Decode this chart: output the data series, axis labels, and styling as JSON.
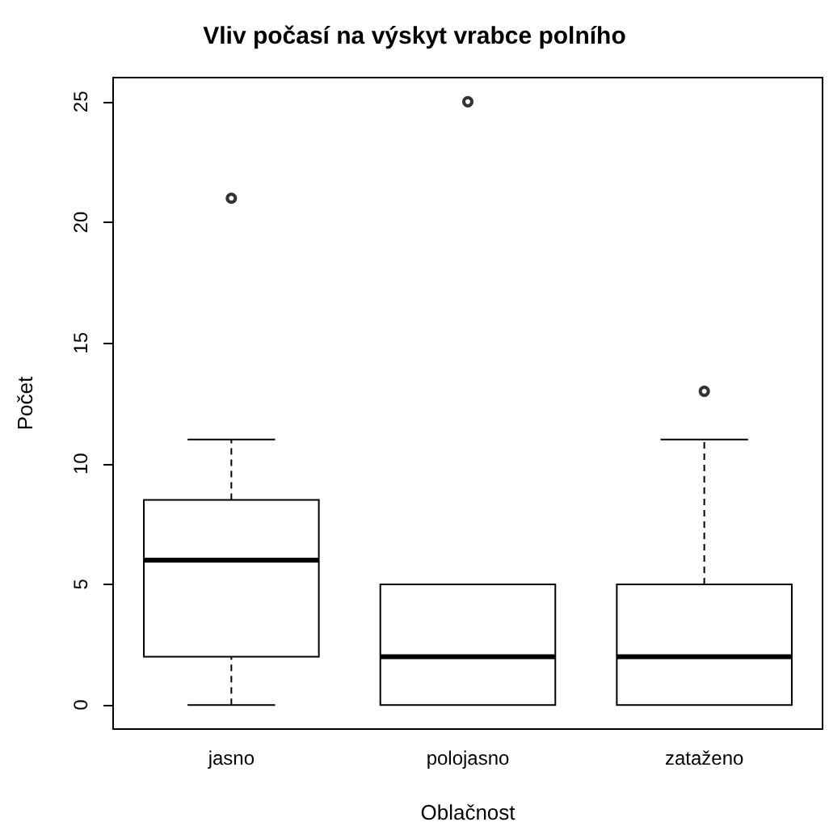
{
  "chart_data": {
    "type": "box",
    "title": "Vliv počasí na výskyt vrabce polního",
    "xlabel": "Oblačnost",
    "ylabel": "Počet",
    "categories": [
      "jasno",
      "polojasno",
      "zataženo"
    ],
    "boxes": [
      {
        "low": 0,
        "q1": 2,
        "median": 6,
        "q3": 8.5,
        "high": 11,
        "outliers": [
          21
        ]
      },
      {
        "low": 0,
        "q1": 0,
        "median": 2,
        "q3": 5,
        "high": 5,
        "outliers": [
          25
        ]
      },
      {
        "low": 0,
        "q1": 0,
        "median": 2,
        "q3": 5,
        "high": 11,
        "outliers": [
          13
        ]
      }
    ],
    "color": "#000000",
    "ylim": [
      -1,
      26
    ],
    "yticks": [
      0,
      5,
      10,
      15,
      20,
      25
    ],
    "grid": false,
    "marker": "circle"
  }
}
